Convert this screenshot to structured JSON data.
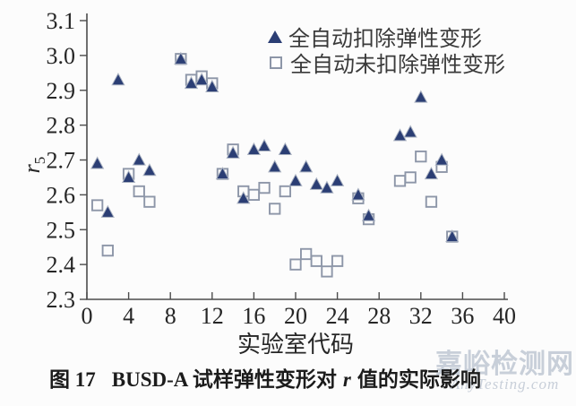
{
  "figure": {
    "caption": {
      "label": "图 17",
      "pre": "BUSD-A 试样弹性变形对",
      "var": "r",
      "post": "值的实际影响"
    },
    "watermark": {
      "line1": "嘉峪检测网",
      "line2": "AnyTesting.com"
    }
  },
  "colors": {
    "axis": "#4c4c4c",
    "tick_text": "#262626",
    "triangle": "#2b3e74",
    "triangle_edge": "#aab2c1",
    "square": "#8d96a8",
    "legend_text": "#3a3a3a",
    "caption_text": "#1c1c1c",
    "watermark": "#c8cfd9",
    "background": "#fcfcfc"
  },
  "chart_data": {
    "type": "scatter",
    "title": "",
    "xlabel": "实验室代码",
    "ylabel": {
      "var": "r",
      "sub": "5"
    },
    "xlim": [
      0,
      40
    ],
    "ylim": [
      2.3,
      3.1
    ],
    "xticks": [
      0,
      4,
      8,
      12,
      16,
      20,
      24,
      28,
      32,
      36,
      40
    ],
    "yticks": [
      2.3,
      2.4,
      2.5,
      2.6,
      2.7,
      2.8,
      2.9,
      3.0,
      3.1
    ],
    "grid": false,
    "legend_position": "inside upper right-of-center",
    "series": [
      {
        "id": "not-deducted",
        "name": "全自动未扣除弹性变形",
        "marker": "square",
        "color": "#8d96a8",
        "points": [
          [
            1,
            2.57
          ],
          [
            2,
            2.44
          ],
          [
            4,
            2.66
          ],
          [
            5,
            2.61
          ],
          [
            6,
            2.58
          ],
          [
            9,
            2.99
          ],
          [
            10,
            2.93
          ],
          [
            11,
            2.94
          ],
          [
            12,
            2.92
          ],
          [
            13,
            2.66
          ],
          [
            14,
            2.73
          ],
          [
            15,
            2.61
          ],
          [
            16,
            2.6
          ],
          [
            17,
            2.62
          ],
          [
            18,
            2.56
          ],
          [
            19,
            2.61
          ],
          [
            20,
            2.4
          ],
          [
            21,
            2.43
          ],
          [
            22,
            2.41
          ],
          [
            23,
            2.38
          ],
          [
            24,
            2.41
          ],
          [
            26,
            2.59
          ],
          [
            27,
            2.53
          ],
          [
            30,
            2.64
          ],
          [
            31,
            2.65
          ],
          [
            32,
            2.71
          ],
          [
            33,
            2.58
          ],
          [
            34,
            2.68
          ],
          [
            35,
            2.48
          ]
        ]
      },
      {
        "id": "deducted",
        "name": "全自动扣除弹性变形",
        "marker": "triangle",
        "color": "#2b3e74",
        "points": [
          [
            1,
            2.69
          ],
          [
            2,
            2.55
          ],
          [
            3,
            2.93
          ],
          [
            4,
            2.65
          ],
          [
            5,
            2.7
          ],
          [
            6,
            2.67
          ],
          [
            9,
            2.99
          ],
          [
            10,
            2.92
          ],
          [
            11,
            2.93
          ],
          [
            12,
            2.91
          ],
          [
            13,
            2.66
          ],
          [
            14,
            2.72
          ],
          [
            15,
            2.59
          ],
          [
            16,
            2.73
          ],
          [
            17,
            2.74
          ],
          [
            18,
            2.68
          ],
          [
            19,
            2.73
          ],
          [
            20,
            2.64
          ],
          [
            21,
            2.68
          ],
          [
            22,
            2.63
          ],
          [
            23,
            2.62
          ],
          [
            24,
            2.64
          ],
          [
            26,
            2.6
          ],
          [
            27,
            2.54
          ],
          [
            30,
            2.77
          ],
          [
            31,
            2.78
          ],
          [
            32,
            2.88
          ],
          [
            33,
            2.66
          ],
          [
            34,
            2.7
          ],
          [
            35,
            2.48
          ]
        ]
      }
    ]
  }
}
